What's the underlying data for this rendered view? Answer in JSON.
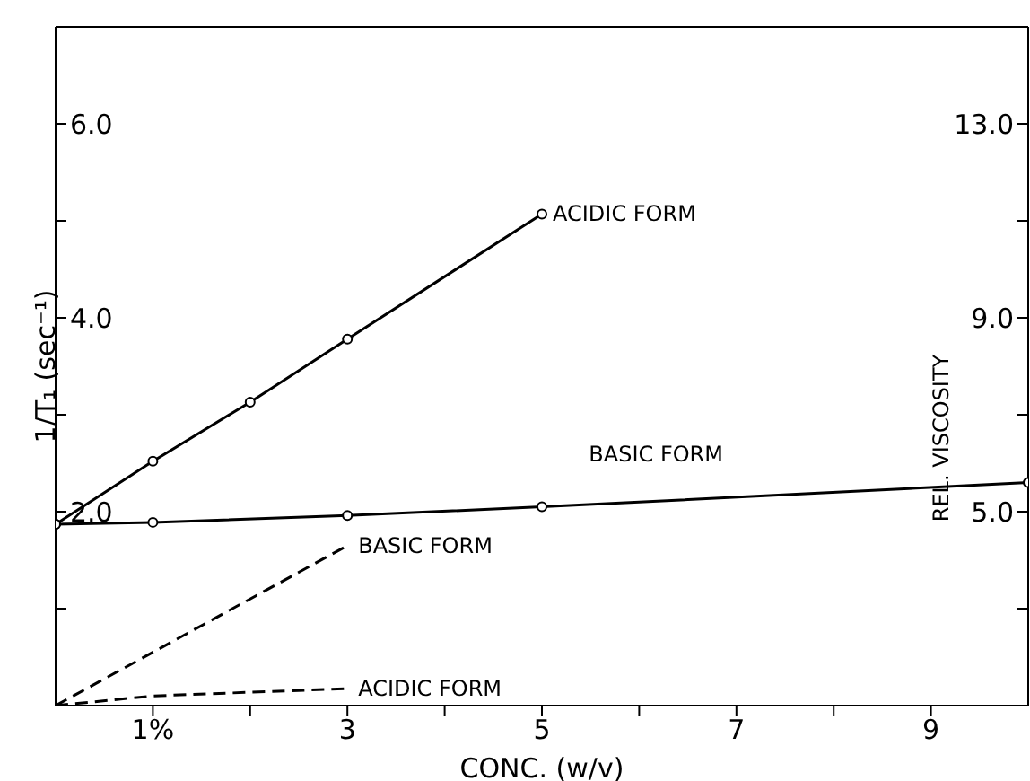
{
  "chart_data": {
    "type": "line",
    "xlabel": "CONC. (w/v)",
    "ylabel": "1/T₁ (sec⁻¹)",
    "y2label": "REL. VISCOSITY",
    "xlim": [
      0,
      10
    ],
    "xticks": [
      {
        "value": 1,
        "label": "1%"
      },
      {
        "value": 2,
        "label": null
      },
      3,
      {
        "value": 4,
        "label": null
      },
      5,
      {
        "value": 6,
        "label": null
      },
      7,
      {
        "value": 8,
        "label": null
      },
      9
    ],
    "ylim": [
      0,
      7
    ],
    "yticks": [
      {
        "value": 1,
        "label": null
      },
      {
        "value": 2,
        "label": "2.0"
      },
      {
        "value": 3,
        "label": null
      },
      {
        "value": 4,
        "label": "4.0"
      },
      {
        "value": 5,
        "label": null
      },
      {
        "value": 6,
        "label": "6.0"
      }
    ],
    "y2lim": [
      1,
      15
    ],
    "y2ticks": [
      {
        "value": 3,
        "label": null
      },
      {
        "value": 5,
        "label": "5.0"
      },
      {
        "value": 7,
        "label": null
      },
      {
        "value": 9,
        "label": "9.0"
      },
      {
        "value": 11,
        "label": null
      },
      {
        "value": 13,
        "label": "13.0"
      }
    ],
    "series": [
      {
        "name": "ACIDIC FORM",
        "color": "#000000",
        "x": [
          0,
          1,
          2,
          3,
          5
        ],
        "values": [
          1.87,
          2.52,
          3.13,
          3.78,
          5.07
        ],
        "marker": "circle",
        "line_style": "solid"
      },
      {
        "name": "BASIC FORM",
        "color": "#000000",
        "x": [
          0,
          1,
          3,
          5,
          10
        ],
        "values": [
          1.87,
          1.89,
          1.96,
          2.05,
          2.3
        ],
        "marker": "circle",
        "line_style": "solid"
      },
      {
        "name": "BASIC FORM",
        "color": "#000000",
        "x": [
          0,
          3
        ],
        "values": [
          1,
          4.3
        ],
        "axis": "y2",
        "marker": "none",
        "line_style": "dashed"
      },
      {
        "name": "ACIDIC FORM",
        "color": "#000000",
        "x": [
          0,
          1,
          3
        ],
        "values": [
          1,
          1.2,
          1.35
        ],
        "axis": "y2",
        "marker": "none",
        "line_style": "dashed"
      }
    ]
  }
}
